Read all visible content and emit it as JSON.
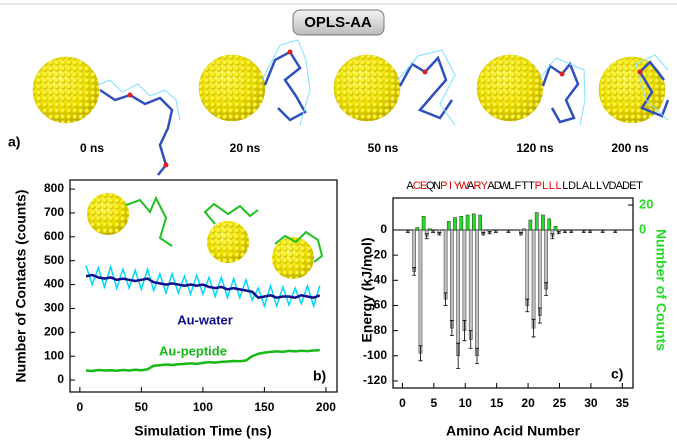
{
  "header": {
    "title": "OPLS-AA"
  },
  "snapshots": {
    "label": "a)",
    "times": [
      "0 ns",
      "20 ns",
      "50 ns",
      "120 ns",
      "200 ns"
    ]
  },
  "chart_data": [
    {
      "type": "line",
      "panel_label": "b)",
      "x_label": "Simulation Time (ns)",
      "y_label": "Number of Contacts (counts)",
      "xlim": [
        -8,
        209
      ],
      "ylim": [
        -50,
        838
      ],
      "xticks": [
        0,
        50,
        100,
        150,
        200
      ],
      "yticks": [
        0,
        100,
        200,
        300,
        400,
        500,
        600,
        700,
        800
      ],
      "x": [
        5,
        10,
        15,
        20,
        25,
        30,
        35,
        40,
        45,
        50,
        55,
        60,
        65,
        70,
        75,
        80,
        85,
        90,
        95,
        100,
        105,
        110,
        115,
        120,
        125,
        130,
        135,
        140,
        145,
        150,
        155,
        160,
        165,
        170,
        175,
        180,
        185,
        190,
        195
      ],
      "series": [
        {
          "color": "#00d8ff",
          "values": [
            480,
            400,
            470,
            390,
            475,
            385,
            465,
            385,
            460,
            380,
            465,
            375,
            445,
            365,
            445,
            365,
            435,
            360,
            440,
            360,
            430,
            350,
            430,
            345,
            425,
            345,
            420,
            335,
            385,
            310,
            395,
            310,
            390,
            315,
            385,
            320,
            395,
            310,
            395
          ]
        },
        {
          "name": "Au-water",
          "color": "#10108c",
          "values": [
            435,
            440,
            430,
            425,
            430,
            420,
            425,
            420,
            415,
            420,
            425,
            410,
            405,
            400,
            405,
            400,
            395,
            400,
            395,
            400,
            390,
            385,
            390,
            380,
            385,
            380,
            375,
            370,
            345,
            350,
            355,
            345,
            350,
            350,
            345,
            355,
            350,
            345,
            355
          ]
        },
        {
          "name": "Au-peptide",
          "color": "#18b818",
          "values": [
            40,
            38,
            42,
            40,
            41,
            39,
            42,
            40,
            43,
            41,
            45,
            60,
            62,
            65,
            63,
            66,
            68,
            70,
            68,
            72,
            75,
            73,
            76,
            78,
            80,
            79,
            82,
            100,
            110,
            115,
            118,
            120,
            118,
            122,
            120,
            123,
            121,
            124,
            125
          ]
        }
      ]
    },
    {
      "type": "bar",
      "panel_label": "c)",
      "x_label": "Amino Acid Number",
      "y_label": "Energy (kJ/mol)",
      "y2_label": "Number of Counts",
      "sequence": [
        "A",
        "C",
        "E",
        "Q",
        "N",
        "P",
        "I",
        "Y",
        "W",
        "A",
        "R",
        "Y",
        "A",
        "D",
        "W",
        "L",
        "F",
        "T",
        "T",
        "P",
        "L",
        "L",
        "L",
        "L",
        "D",
        "L",
        "A",
        "L",
        "L",
        "V",
        "D",
        "A",
        "D",
        "E",
        "T"
      ],
      "highlighted": [
        1,
        2,
        5,
        6,
        7,
        8,
        10,
        11,
        19,
        20,
        21,
        22
      ],
      "highlight_color": "#e00000",
      "xlim": [
        -1.5,
        36.7
      ],
      "ylim": [
        -125.6,
        25.4
      ],
      "y2lim": [
        -126.4,
        25.6
      ],
      "xticks": [
        0,
        5,
        10,
        15,
        20,
        25,
        30,
        35
      ],
      "yticks": [
        -120,
        -100,
        -80,
        -60,
        -40,
        -20,
        0
      ],
      "y2ticks": [
        0,
        20
      ],
      "x": [
        1,
        2,
        3,
        4,
        5,
        6,
        7,
        8,
        9,
        10,
        11,
        12,
        13,
        14,
        15,
        16,
        17,
        18,
        19,
        20,
        21,
        22,
        23,
        24,
        25,
        26,
        27,
        28,
        29,
        30,
        31,
        32,
        33,
        34,
        35
      ],
      "series": [
        {
          "color": "#c0c0c0",
          "values": [
            -1,
            -33,
            -98,
            -5,
            -1,
            -3,
            -55,
            -78,
            -100,
            -80,
            -87,
            -100,
            -3,
            -2,
            -1,
            0,
            -1,
            0,
            -3,
            -60,
            -78,
            -68,
            -47,
            -5,
            -2,
            -1,
            -1,
            0,
            -1,
            -1,
            0,
            -1,
            0,
            -1,
            0
          ],
          "errors": [
            1,
            3,
            6,
            2,
            1,
            1,
            5,
            6,
            10,
            8,
            7,
            6,
            1,
            1,
            1,
            0,
            1,
            0,
            1,
            5,
            7,
            6,
            5,
            2,
            1,
            1,
            1,
            0,
            1,
            1,
            0,
            1,
            0,
            1,
            0
          ]
        },
        {
          "axis": "y2",
          "color": "#22dd22",
          "values": [
            0,
            2,
            11,
            1,
            0,
            0,
            7,
            10,
            11,
            12,
            13,
            12,
            0,
            0,
            0,
            0,
            0,
            0,
            1,
            8,
            14,
            12,
            9,
            3,
            0,
            0,
            0,
            0,
            0,
            0,
            0,
            0,
            0,
            0,
            0
          ]
        }
      ]
    }
  ]
}
